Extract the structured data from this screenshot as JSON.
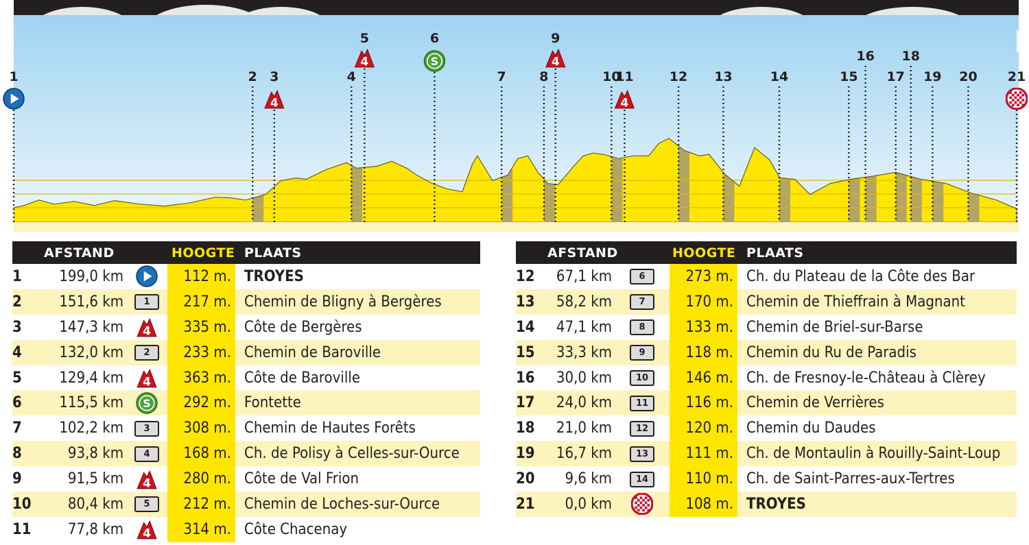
{
  "chart_data": {
    "type": "area",
    "title": "",
    "colors": {
      "fill": "#ffe600",
      "sky": "#c5e4f7",
      "gravel": "#9a8f86",
      "header": "#231f20"
    },
    "markers": [
      {
        "n": "1",
        "km": 199.0,
        "type": "start"
      },
      {
        "n": "2",
        "km": 151.6,
        "type": "sector"
      },
      {
        "n": "3",
        "km": 147.3,
        "type": "climb4"
      },
      {
        "n": "4",
        "km": 132.0,
        "type": "sector"
      },
      {
        "n": "5",
        "km": 129.4,
        "type": "climb4"
      },
      {
        "n": "6",
        "km": 115.5,
        "type": "sprint"
      },
      {
        "n": "7",
        "km": 102.2,
        "type": "sector"
      },
      {
        "n": "8",
        "km": 93.8,
        "type": "sector"
      },
      {
        "n": "9",
        "km": 91.5,
        "type": "climb4"
      },
      {
        "n": "10",
        "km": 80.4,
        "type": "sector"
      },
      {
        "n": "11",
        "km": 77.8,
        "type": "climb4"
      },
      {
        "n": "12",
        "km": 67.1,
        "type": "sector"
      },
      {
        "n": "13",
        "km": 58.2,
        "type": "sector"
      },
      {
        "n": "14",
        "km": 47.1,
        "type": "sector"
      },
      {
        "n": "15",
        "km": 33.3,
        "type": "sector"
      },
      {
        "n": "16",
        "km": 30.0,
        "type": "sector"
      },
      {
        "n": "17",
        "km": 24.0,
        "type": "sector"
      },
      {
        "n": "18",
        "km": 21.0,
        "type": "sector"
      },
      {
        "n": "19",
        "km": 16.7,
        "type": "sector"
      },
      {
        "n": "20",
        "km": 9.6,
        "type": "sector"
      },
      {
        "n": "21",
        "km": 0.0,
        "type": "finish"
      }
    ],
    "profile": [
      [
        0,
        112
      ],
      [
        2,
        120
      ],
      [
        5,
        140
      ],
      [
        8,
        125
      ],
      [
        12,
        135
      ],
      [
        16,
        120
      ],
      [
        20,
        138
      ],
      [
        25,
        125
      ],
      [
        30,
        118
      ],
      [
        35,
        130
      ],
      [
        40,
        150
      ],
      [
        43,
        148
      ],
      [
        46,
        140
      ],
      [
        50,
        160
      ],
      [
        53,
        210
      ],
      [
        56,
        220
      ],
      [
        58,
        215
      ],
      [
        62,
        250
      ],
      [
        66,
        275
      ],
      [
        68,
        255
      ],
      [
        72,
        262
      ],
      [
        75,
        280
      ],
      [
        78,
        255
      ],
      [
        80,
        230
      ],
      [
        83,
        200
      ],
      [
        86,
        180
      ],
      [
        89,
        170
      ],
      [
        91,
        270
      ],
      [
        92,
        300
      ],
      [
        93,
        270
      ],
      [
        95,
        210
      ],
      [
        98,
        230
      ],
      [
        100,
        290
      ],
      [
        102,
        300
      ],
      [
        104,
        240
      ],
      [
        106,
        200
      ],
      [
        108,
        195
      ],
      [
        111,
        260
      ],
      [
        113,
        300
      ],
      [
        115,
        310
      ],
      [
        117,
        305
      ],
      [
        120,
        290
      ],
      [
        123,
        300
      ],
      [
        126,
        300
      ],
      [
        128,
        345
      ],
      [
        130,
        363
      ],
      [
        133,
        320
      ],
      [
        136,
        300
      ],
      [
        138,
        305
      ],
      [
        141,
        235
      ],
      [
        144,
        190
      ],
      [
        147,
        330
      ],
      [
        150,
        285
      ],
      [
        152,
        220
      ],
      [
        155,
        215
      ],
      [
        158,
        160
      ],
      [
        162,
        200
      ],
      [
        166,
        215
      ],
      [
        170,
        225
      ],
      [
        175,
        240
      ],
      [
        180,
        215
      ],
      [
        185,
        200
      ],
      [
        190,
        165
      ],
      [
        195,
        140
      ],
      [
        199,
        108
      ]
    ],
    "ylim": [
      0,
      380
    ],
    "xlim": [
      0,
      199
    ],
    "x_direction": "km remaining (left = start)"
  },
  "table": {
    "headers": {
      "afstand": "AFSTAND",
      "hoogte": "HOOGTE",
      "plaats": "PLAATS"
    },
    "left": [
      {
        "n": "1",
        "dist": "199,0 km",
        "icon": "start",
        "badge": "",
        "hoogte": "112 m.",
        "plaats": "TROYES",
        "bold": true
      },
      {
        "n": "2",
        "dist": "151,6 km",
        "icon": "sector",
        "badge": "1",
        "hoogte": "217 m.",
        "plaats": "Chemin de Bligny à Bergères",
        "bold": false
      },
      {
        "n": "3",
        "dist": "147,3 km",
        "icon": "climb4",
        "badge": "",
        "hoogte": "335 m.",
        "plaats": "Côte de Bergères",
        "bold": false
      },
      {
        "n": "4",
        "dist": "132,0 km",
        "icon": "sector",
        "badge": "2",
        "hoogte": "233 m.",
        "plaats": "Chemin de Baroville",
        "bold": false
      },
      {
        "n": "5",
        "dist": "129,4 km",
        "icon": "climb4",
        "badge": "",
        "hoogte": "363 m.",
        "plaats": "Côte de Baroville",
        "bold": false
      },
      {
        "n": "6",
        "dist": "115,5 km",
        "icon": "sprint",
        "badge": "",
        "hoogte": "292 m.",
        "plaats": "Fontette",
        "bold": false
      },
      {
        "n": "7",
        "dist": "102,2 km",
        "icon": "sector",
        "badge": "3",
        "hoogte": "308 m.",
        "plaats": "Chemin de Hautes Forêts",
        "bold": false
      },
      {
        "n": "8",
        "dist": "93,8 km",
        "icon": "sector",
        "badge": "4",
        "hoogte": "168 m.",
        "plaats": "Ch. de Polisy à Celles-sur-Ource",
        "bold": false
      },
      {
        "n": "9",
        "dist": "91,5 km",
        "icon": "climb4",
        "badge": "",
        "hoogte": "280 m.",
        "plaats": "Côte de Val Frion",
        "bold": false
      },
      {
        "n": "10",
        "dist": "80,4 km",
        "icon": "sector",
        "badge": "5",
        "hoogte": "212 m.",
        "plaats": "Chemin de Loches-sur-Ource",
        "bold": false
      },
      {
        "n": "11",
        "dist": "77,8 km",
        "icon": "climb4",
        "badge": "",
        "hoogte": "314 m.",
        "plaats": "Côte Chacenay",
        "bold": false
      }
    ],
    "right": [
      {
        "n": "12",
        "dist": "67,1 km",
        "icon": "sector",
        "badge": "6",
        "hoogte": "273 m.",
        "plaats": "Ch. du Plateau de la Côte des Bar",
        "bold": false
      },
      {
        "n": "13",
        "dist": "58,2 km",
        "icon": "sector",
        "badge": "7",
        "hoogte": "170 m.",
        "plaats": "Chemin de Thieffrain à Magnant",
        "bold": false
      },
      {
        "n": "14",
        "dist": "47,1 km",
        "icon": "sector",
        "badge": "8",
        "hoogte": "133 m.",
        "plaats": "Chemin de Briel-sur-Barse",
        "bold": false
      },
      {
        "n": "15",
        "dist": "33,3 km",
        "icon": "sector",
        "badge": "9",
        "hoogte": "118 m.",
        "plaats": "Chemin du Ru de Paradis",
        "bold": false
      },
      {
        "n": "16",
        "dist": "30,0 km",
        "icon": "sector",
        "badge": "10",
        "hoogte": "146 m.",
        "plaats": "Ch. de Fresnoy-le-Château à Clèrey",
        "bold": false
      },
      {
        "n": "17",
        "dist": "24,0 km",
        "icon": "sector",
        "badge": "11",
        "hoogte": "116 m.",
        "plaats": "Chemin de Verrières",
        "bold": false
      },
      {
        "n": "18",
        "dist": "21,0 km",
        "icon": "sector",
        "badge": "12",
        "hoogte": "120 m.",
        "plaats": "Chemin du Daudes",
        "bold": false
      },
      {
        "n": "19",
        "dist": "16,7 km",
        "icon": "sector",
        "badge": "13",
        "hoogte": "111 m.",
        "plaats": "Ch. de Montaulin à Rouilly-Saint-Loup",
        "bold": false
      },
      {
        "n": "20",
        "dist": "9,6 km",
        "icon": "sector",
        "badge": "14",
        "hoogte": "110 m.",
        "plaats": "Ch. de Saint-Parres-aux-Tertres",
        "bold": false
      },
      {
        "n": "21",
        "dist": "0,0 km",
        "icon": "finish",
        "badge": "",
        "hoogte": "108 m.",
        "plaats": "TROYES",
        "bold": true
      }
    ]
  }
}
